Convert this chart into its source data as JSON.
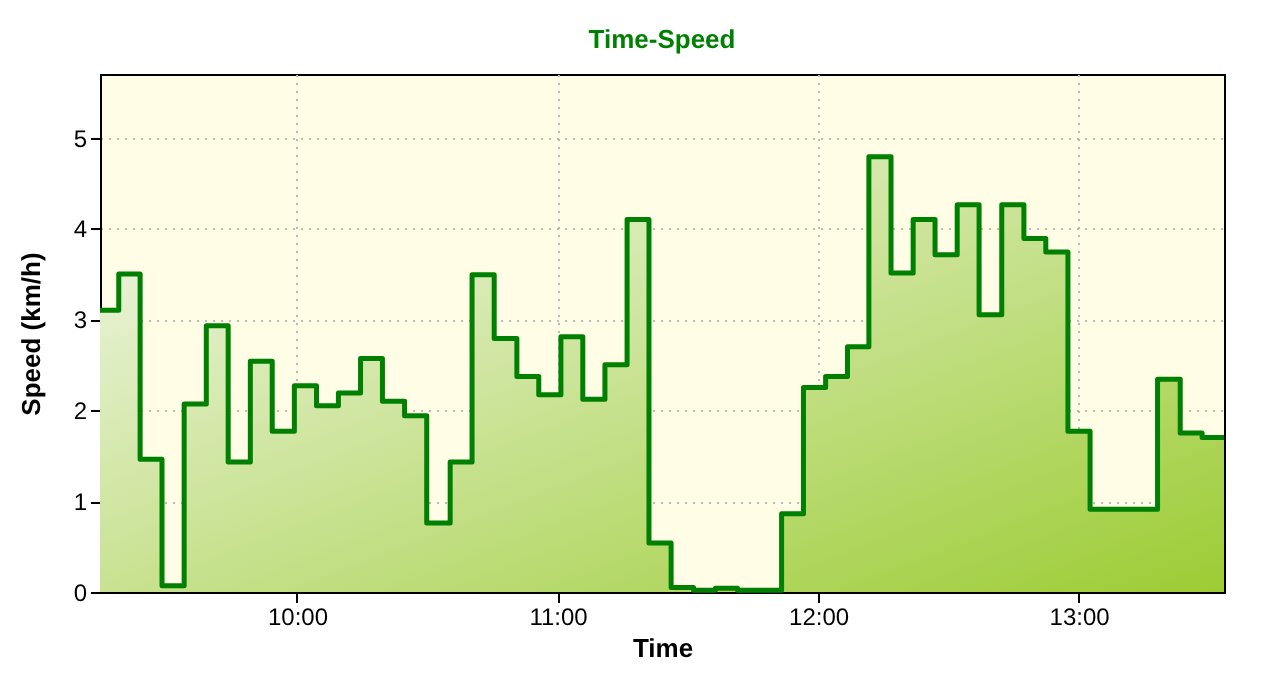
{
  "chart_data": {
    "type": "step",
    "title": "Time-Speed",
    "xlabel": "Time",
    "ylabel": "Speed (km/h)",
    "x": [
      9.244,
      9.316,
      9.398,
      9.482,
      9.567,
      9.652,
      9.736,
      9.821,
      9.905,
      9.99,
      10.075,
      10.159,
      10.244,
      10.328,
      10.413,
      10.498,
      10.588,
      10.672,
      10.757,
      10.844,
      10.928,
      11.013,
      11.097,
      11.182,
      11.267,
      11.351,
      11.436,
      11.522,
      11.606,
      11.691,
      11.775,
      11.86,
      11.944,
      12.029,
      12.113,
      12.195,
      12.28,
      12.365,
      12.449,
      12.534,
      12.618,
      12.705,
      12.79,
      12.874,
      12.959,
      13.044,
      13.128,
      13.213,
      13.303,
      13.39,
      13.474,
      13.558
    ],
    "series": [
      {
        "color": "#008000",
        "values": [
          3.1,
          3.5,
          1.46,
          0.07,
          2.07,
          2.93,
          1.43,
          2.54,
          1.77,
          2.27,
          2.05,
          2.19,
          2.57,
          2.1,
          1.94,
          0.76,
          1.43,
          3.49,
          2.79,
          2.37,
          2.17,
          2.81,
          2.12,
          2.5,
          4.1,
          0.54,
          0.05,
          0.02,
          0.04,
          0.02,
          0.02,
          0.86,
          2.25,
          2.37,
          2.7,
          4.79,
          3.51,
          4.1,
          3.71,
          4.26,
          3.05,
          4.26,
          3.89,
          3.74,
          1.77,
          0.91,
          0.91,
          0.91,
          2.34,
          1.75,
          1.7,
          1.7
        ]
      }
    ],
    "xlim": [
      9.244,
      13.558
    ],
    "xticks": [
      {
        "value": 10,
        "label": "10:00"
      },
      {
        "value": 11,
        "label": "11:00"
      },
      {
        "value": 12,
        "label": "12:00"
      },
      {
        "value": 13,
        "label": "13:00"
      }
    ],
    "ylim": [
      0,
      5.7
    ],
    "yticks": [
      0,
      1,
      2,
      3,
      4,
      5
    ],
    "grid": true,
    "marker": "none",
    "line_style": "solid"
  }
}
